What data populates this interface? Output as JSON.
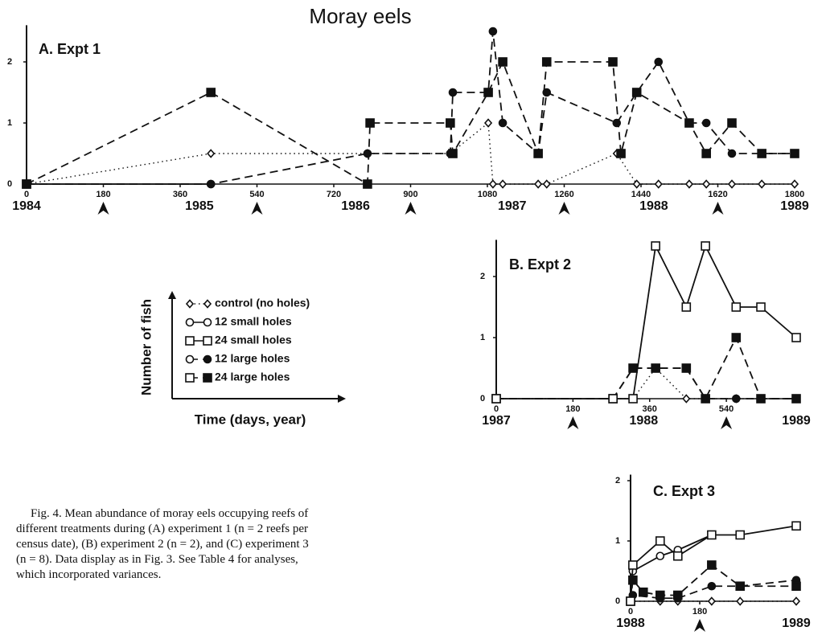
{
  "title": "Moray eels",
  "legend": {
    "y_label": "Number of fish",
    "x_label": "Time (days, year)",
    "entries": [
      {
        "name": "control (no holes)",
        "marker": "diamond-open",
        "dash": "dotted"
      },
      {
        "name": "12 small holes",
        "marker": "circle-open",
        "dash": "solid"
      },
      {
        "name": "24 small holes",
        "marker": "square-open",
        "dash": "solid"
      },
      {
        "name": "12 large holes",
        "marker": "circle-filled",
        "dash": "dashed"
      },
      {
        "name": "24 large holes",
        "marker": "square-filled",
        "dash": "dashed"
      }
    ]
  },
  "caption": "Fig. 4. Mean abundance of moray eels occupying reefs of different treatments during (A) experiment 1 (n = 2 reefs per census date), (B) experiment 2 (n = 2), and (C) experiment 3 (n = 8). Data display as in Fig. 3. See Table 4 for analyses, which incorporated variances.",
  "chart_data": [
    {
      "type": "line",
      "title": "A. Expt 1",
      "xlim": [
        0,
        1800
      ],
      "ylim": [
        0,
        2.6
      ],
      "xticks": [
        0,
        180,
        360,
        540,
        720,
        900,
        1080,
        1260,
        1440,
        1620,
        1800
      ],
      "yticks": [
        0,
        1,
        2
      ],
      "year_ticks": [
        {
          "value": 0,
          "label": "1984"
        },
        {
          "value": 405,
          "label": "1985"
        },
        {
          "value": 771,
          "label": "1986"
        },
        {
          "value": 1138,
          "label": "1987"
        },
        {
          "value": 1470,
          "label": "1988"
        },
        {
          "value": 1800,
          "label": "1989"
        }
      ],
      "arrows": [
        180,
        540,
        900,
        1260,
        1620
      ],
      "series": [
        {
          "marker": "diamond-open",
          "dash": "dotted",
          "x": [
            0,
            432,
            799,
            993,
            1082,
            1093,
            1116,
            1199,
            1219,
            1383,
            1430,
            1481,
            1553,
            1593,
            1653,
            1723,
            1800
          ],
          "values": [
            0,
            0.5,
            0.5,
            0.5,
            1.0,
            0,
            0,
            0,
            0,
            0.5,
            0,
            0,
            0,
            0,
            0,
            0,
            0
          ]
        },
        {
          "marker": "circle-open",
          "dash": "solid",
          "x": [
            0,
            432
          ],
          "values": [
            0,
            0
          ]
        },
        {
          "marker": "square-open",
          "dash": "solid",
          "x": [
            0
          ],
          "values": [
            0
          ]
        },
        {
          "marker": "circle-filled",
          "dash": "dashed",
          "x": [
            0,
            432,
            799,
            993,
            999,
            1082,
            1093,
            1116,
            1199,
            1219,
            1383,
            1430,
            1481,
            1553,
            1593,
            1653,
            1723,
            1800
          ],
          "values": [
            0,
            0,
            0.5,
            0.5,
            1.5,
            1.5,
            2.5,
            1.0,
            0.5,
            1.5,
            1.0,
            1.5,
            2.0,
            1.0,
            1.0,
            0.5,
            0.5,
            0.5
          ]
        },
        {
          "marker": "square-filled",
          "dash": "dashed",
          "x": [
            0,
            432,
            799,
            805,
            993,
            999,
            1082,
            1116,
            1199,
            1219,
            1374,
            1393,
            1430,
            1553,
            1593,
            1653,
            1723,
            1800
          ],
          "values": [
            0,
            1.5,
            0,
            1.0,
            1.0,
            0.5,
            1.5,
            2.0,
            0.5,
            2.0,
            2.0,
            0.5,
            1.5,
            1.0,
            0.5,
            1.0,
            0.5,
            0.5
          ]
        }
      ]
    },
    {
      "type": "line",
      "title": "B. Expt 2",
      "xlim": [
        0,
        704
      ],
      "ylim": [
        0,
        2.6
      ],
      "xticks": [
        0,
        180,
        360,
        540
      ],
      "yticks": [
        0,
        1,
        2
      ],
      "year_ticks": [
        {
          "value": 0,
          "label": "1987"
        },
        {
          "value": 346,
          "label": "1988"
        },
        {
          "value": 704,
          "label": "1989"
        }
      ],
      "arrows": [
        180,
        540
      ],
      "series": [
        {
          "marker": "diamond-open",
          "dash": "dotted",
          "x": [
            0,
            274,
            321,
            374,
            446,
            491,
            563,
            621,
            704
          ],
          "values": [
            0,
            0,
            0,
            0.5,
            0,
            0,
            0,
            0,
            0
          ]
        },
        {
          "marker": "circle-filled",
          "dash": "dashed",
          "x": [
            0,
            274,
            321,
            374,
            446,
            491,
            563,
            621,
            704
          ],
          "values": [
            0,
            0,
            0.5,
            0.5,
            0.5,
            0,
            0,
            0,
            0
          ]
        },
        {
          "marker": "square-filled",
          "dash": "dashed",
          "x": [
            0,
            274,
            321,
            374,
            446,
            491,
            563,
            621,
            704
          ],
          "values": [
            0,
            0,
            0.5,
            0.5,
            0.5,
            0,
            1.0,
            0,
            0
          ]
        },
        {
          "marker": "square-open",
          "dash": "solid",
          "x": [
            0,
            274,
            321,
            374,
            446,
            491,
            563,
            621,
            704
          ],
          "values": [
            0,
            0,
            0,
            2.5,
            1.5,
            2.5,
            1.5,
            1.5,
            1.0
          ]
        }
      ]
    },
    {
      "type": "line",
      "title": "C. Expt 3",
      "xlim": [
        0,
        431
      ],
      "ylim": [
        0,
        2.1
      ],
      "xticks": [
        0,
        180
      ],
      "yticks": [
        0,
        1,
        2
      ],
      "year_ticks": [
        {
          "value": 0,
          "label": "1988"
        },
        {
          "value": 431,
          "label": "1989"
        }
      ],
      "arrows": [
        180
      ],
      "series": [
        {
          "marker": "diamond-open",
          "dash": "dotted",
          "x": [
            0,
            77,
            123,
            211,
            285,
            431
          ],
          "values": [
            0,
            0,
            0,
            0,
            0,
            0
          ]
        },
        {
          "marker": "circle-filled",
          "dash": "dashed",
          "x": [
            0,
            6,
            77,
            123,
            211,
            285,
            431
          ],
          "values": [
            0,
            0.1,
            0.05,
            0.05,
            0.25,
            0.25,
            0.35
          ]
        },
        {
          "marker": "square-filled",
          "dash": "dashed",
          "x": [
            0,
            6,
            33,
            77,
            123,
            211,
            285,
            431
          ],
          "values": [
            0,
            0.35,
            0.15,
            0.1,
            0.1,
            0.6,
            0.25,
            0.25
          ]
        },
        {
          "marker": "circle-open",
          "dash": "solid",
          "x": [
            0,
            6,
            77,
            123,
            211
          ],
          "values": [
            0,
            0.5,
            0.75,
            0.85,
            1.1
          ]
        },
        {
          "marker": "square-open",
          "dash": "solid",
          "x": [
            0,
            6,
            77,
            123,
            211,
            285,
            431
          ],
          "values": [
            0,
            0.6,
            1.0,
            0.75,
            1.1,
            1.1,
            1.25
          ]
        }
      ]
    }
  ]
}
